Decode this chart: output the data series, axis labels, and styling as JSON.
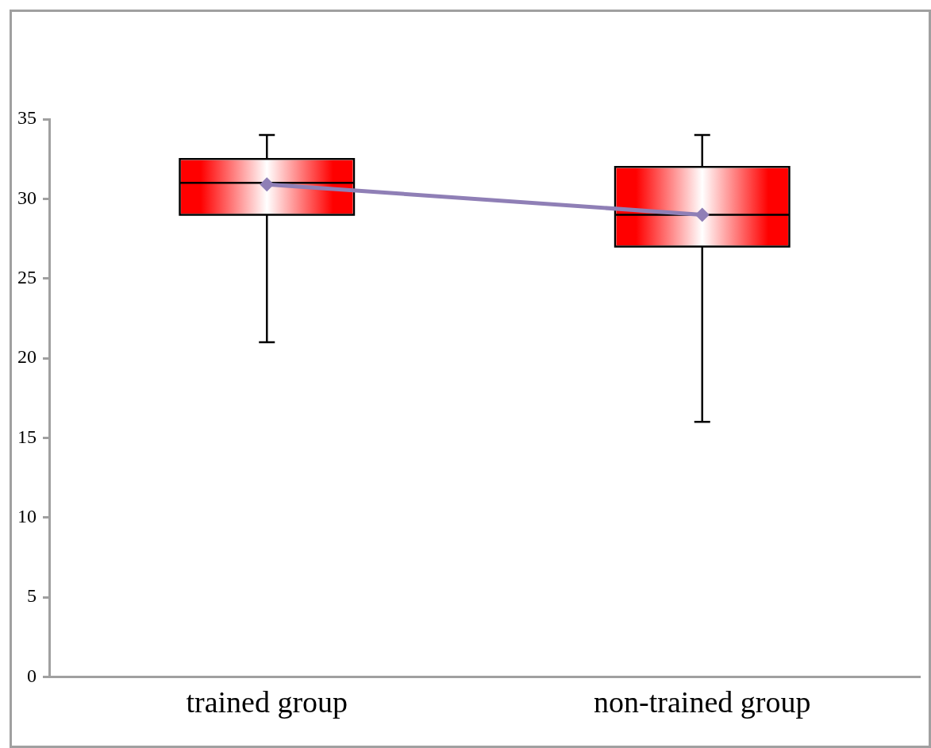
{
  "chart_data": {
    "type": "box",
    "categories": [
      "trained group",
      "non-trained group"
    ],
    "series": [
      {
        "color": "#ff0000",
        "boxes": [
          {
            "low": 21,
            "q1": 29,
            "median": 31,
            "q3": 32.5,
            "high": 34
          },
          {
            "low": 16,
            "q1": 27,
            "median": 29,
            "q3": 32,
            "high": 34
          }
        ]
      },
      {
        "type": "line",
        "color": "#8f7fb6",
        "x": [
          "trained group",
          "non-trained group"
        ],
        "values": [
          30.9,
          29.0
        ]
      }
    ],
    "ylim": [
      0,
      35
    ],
    "yticks": [
      0,
      5,
      10,
      15,
      20,
      25,
      30,
      35
    ],
    "grid": false,
    "legend": false,
    "marker": "diamond",
    "line_style": "solid"
  }
}
